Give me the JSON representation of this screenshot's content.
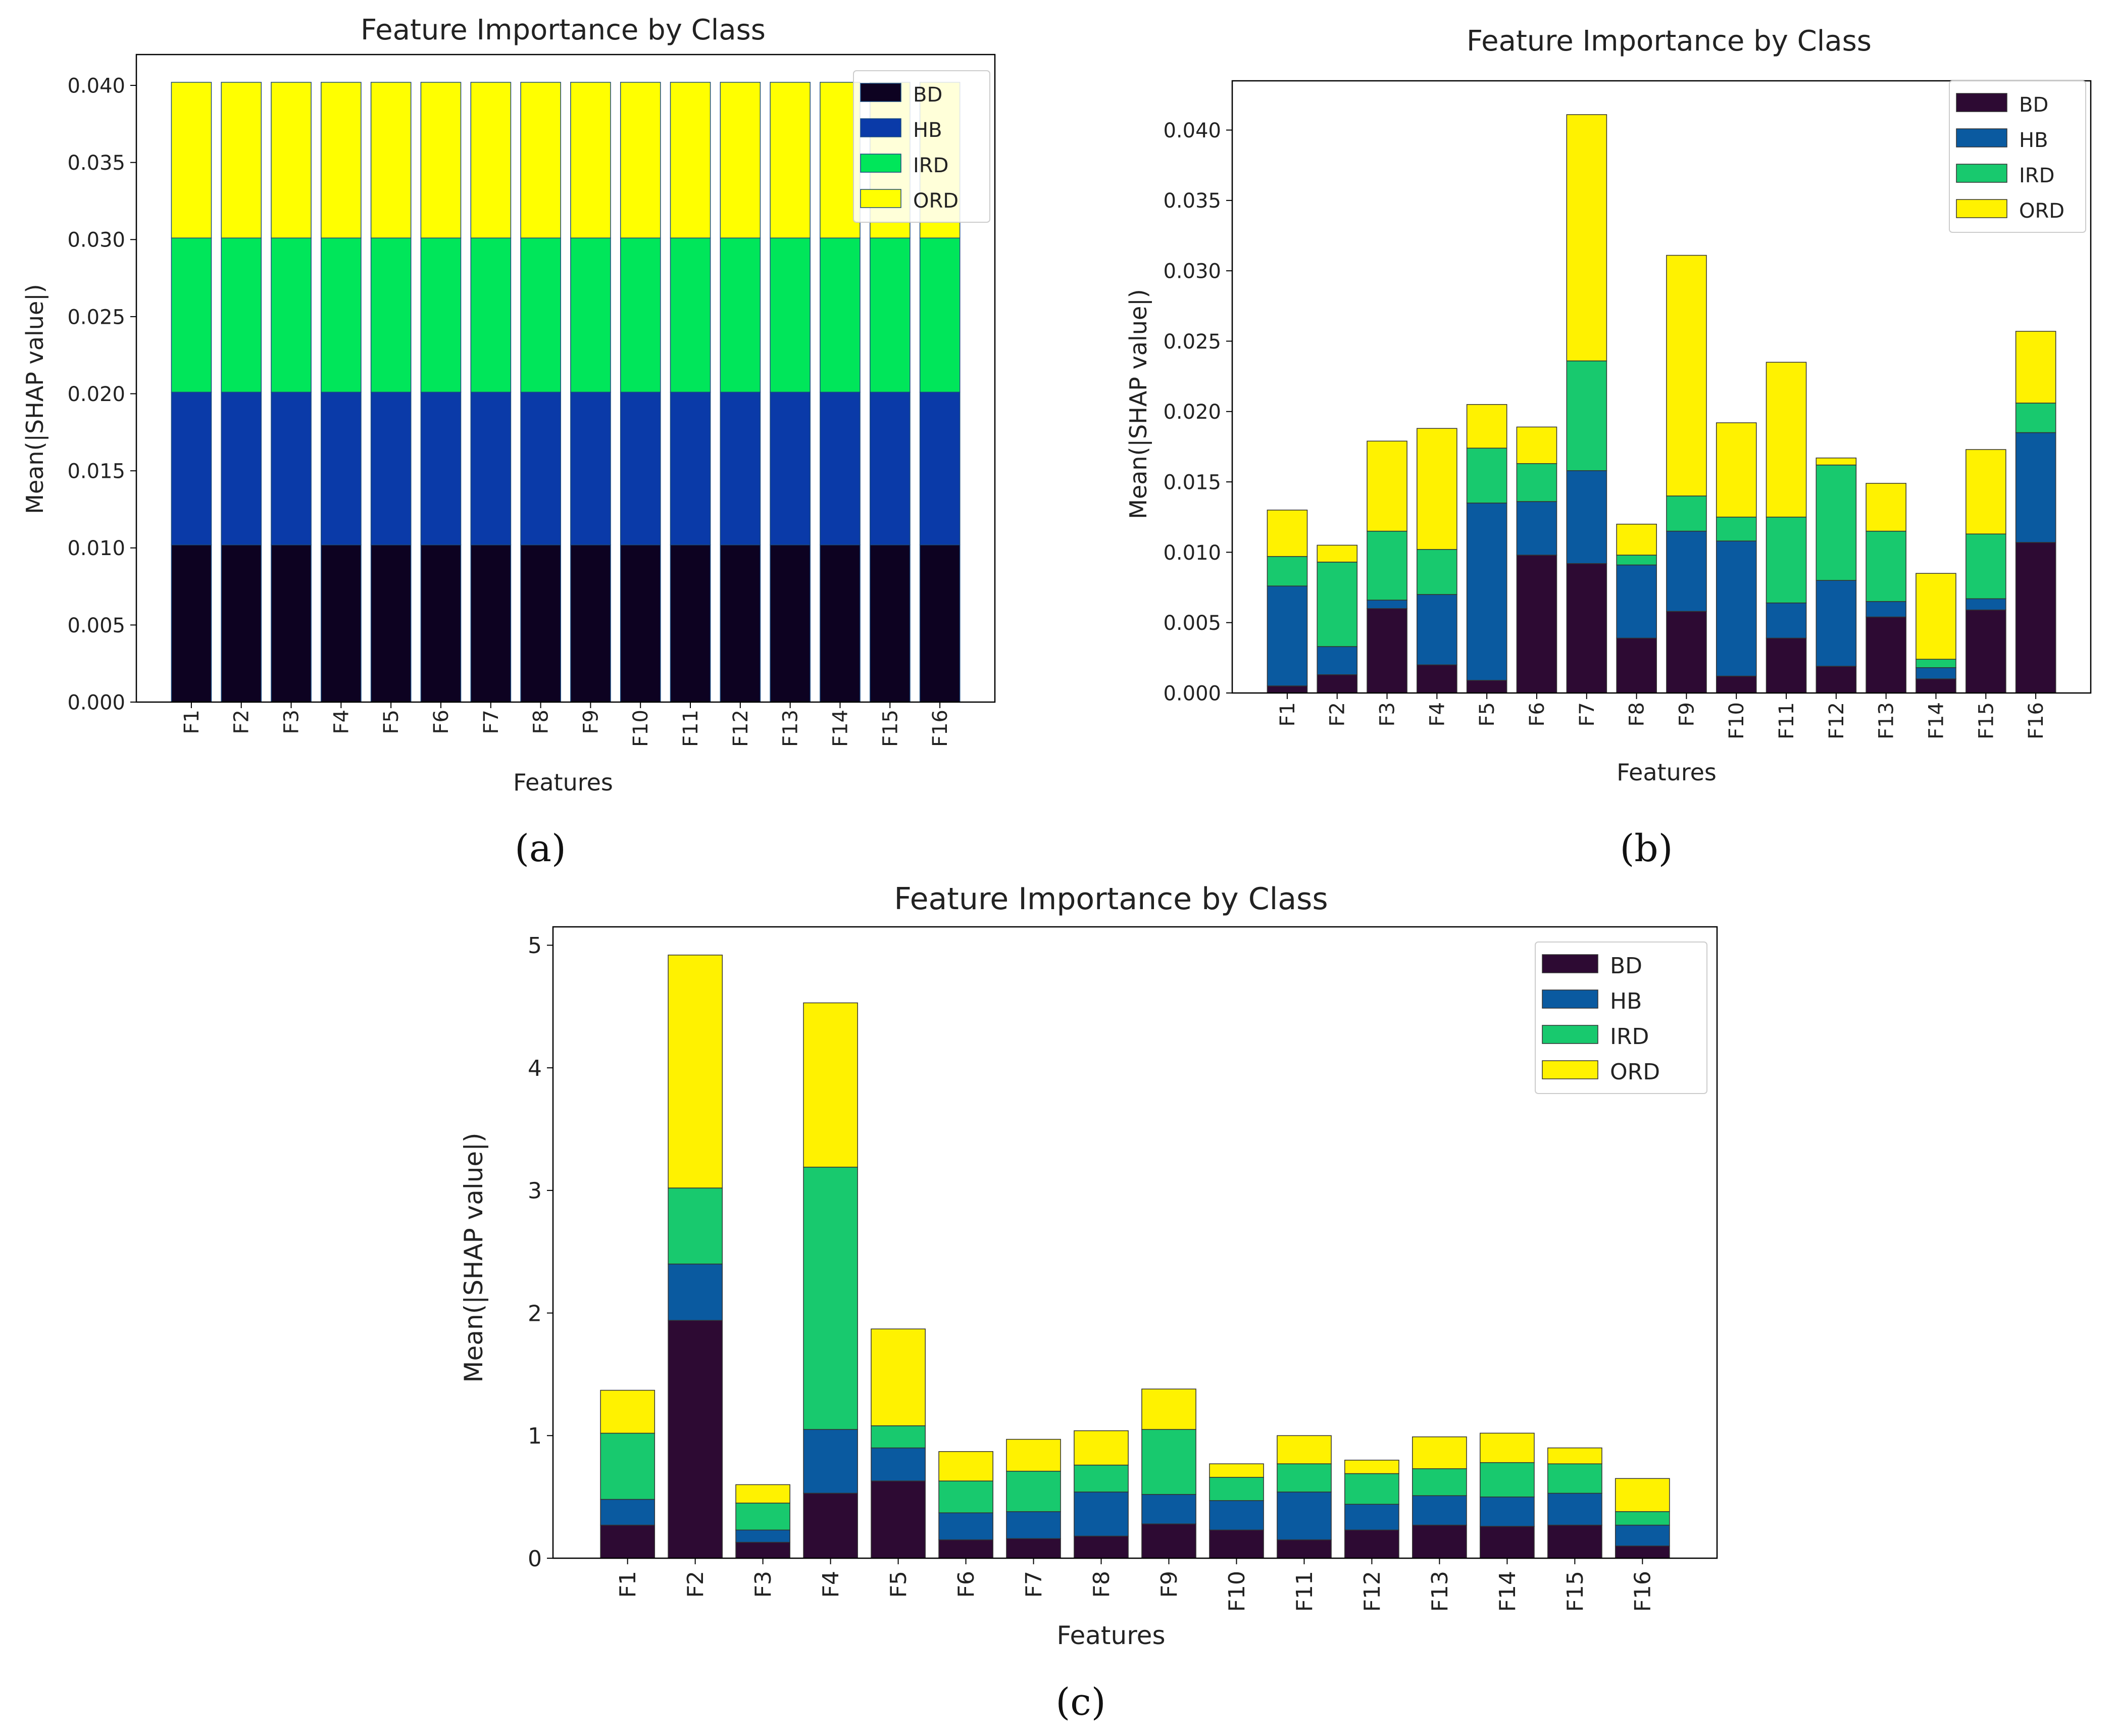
{
  "colors": {
    "BD": "#0d0221",
    "HB": "#0a3aa8",
    "IRD": "#00e65a",
    "ORD": "#ffff00"
  },
  "colors_b": {
    "BD": "#2d0a33",
    "HB": "#0a5aa0",
    "IRD": "#18c96e",
    "ORD": "#fff200"
  },
  "chart_data": [
    {
      "panel": "(a)",
      "type": "bar",
      "stacked": true,
      "title": "Feature Importance by Class",
      "xlabel": "Features",
      "ylabel": "Mean(|SHAP value|)",
      "categories": [
        "F1",
        "F2",
        "F3",
        "F4",
        "F5",
        "F6",
        "F7",
        "F8",
        "F9",
        "F10",
        "F11",
        "F12",
        "F13",
        "F14",
        "F15",
        "F16"
      ],
      "ylim": [
        0,
        0.042
      ],
      "yticks": [
        "0.000",
        "0.005",
        "0.010",
        "0.015",
        "0.020",
        "0.025",
        "0.030",
        "0.035",
        "0.040"
      ],
      "legend": "top-right",
      "series": [
        {
          "name": "BD",
          "values": [
            0.0102,
            0.0102,
            0.0102,
            0.0102,
            0.0102,
            0.0102,
            0.0102,
            0.0102,
            0.0102,
            0.0102,
            0.0102,
            0.0102,
            0.0102,
            0.0102,
            0.0102,
            0.0102
          ]
        },
        {
          "name": "HB",
          "values": [
            0.0099,
            0.0099,
            0.0099,
            0.0099,
            0.0099,
            0.0099,
            0.0099,
            0.0099,
            0.0099,
            0.0099,
            0.0099,
            0.0099,
            0.0099,
            0.0099,
            0.0099,
            0.0099
          ]
        },
        {
          "name": "IRD",
          "values": [
            0.01,
            0.01,
            0.01,
            0.01,
            0.01,
            0.01,
            0.01,
            0.01,
            0.01,
            0.01,
            0.01,
            0.01,
            0.01,
            0.01,
            0.01,
            0.01
          ]
        },
        {
          "name": "ORD",
          "values": [
            0.0101,
            0.0101,
            0.0101,
            0.0101,
            0.0101,
            0.0101,
            0.0101,
            0.0101,
            0.0101,
            0.0101,
            0.0101,
            0.0101,
            0.0101,
            0.0101,
            0.0101,
            0.0101
          ]
        }
      ]
    },
    {
      "panel": "(b)",
      "type": "bar",
      "stacked": true,
      "title": "Feature Importance by Class",
      "xlabel": "Features",
      "ylabel": "Mean(|SHAP value|)",
      "categories": [
        "F1",
        "F2",
        "F3",
        "F4",
        "F5",
        "F6",
        "F7",
        "F8",
        "F9",
        "F10",
        "F11",
        "F12",
        "F13",
        "F14",
        "F15",
        "F16"
      ],
      "ylim": [
        0,
        0.0435
      ],
      "yticks": [
        "0.000",
        "0.005",
        "0.010",
        "0.015",
        "0.020",
        "0.025",
        "0.030",
        "0.035",
        "0.040"
      ],
      "legend": "top-right",
      "series": [
        {
          "name": "BD",
          "values": [
            0.0005,
            0.0013,
            0.006,
            0.002,
            0.0009,
            0.0098,
            0.0092,
            0.0039,
            0.0058,
            0.0012,
            0.0039,
            0.0019,
            0.0054,
            0.001,
            0.0059,
            0.0107
          ]
        },
        {
          "name": "HB",
          "values": [
            0.0071,
            0.002,
            0.0006,
            0.005,
            0.0126,
            0.0038,
            0.0066,
            0.0052,
            0.0057,
            0.0096,
            0.0025,
            0.0061,
            0.0011,
            0.0008,
            0.0008,
            0.0078
          ]
        },
        {
          "name": "IRD",
          "values": [
            0.0021,
            0.006,
            0.0049,
            0.0032,
            0.0039,
            0.0027,
            0.0078,
            0.0007,
            0.0025,
            0.0017,
            0.0061,
            0.0082,
            0.005,
            0.0006,
            0.0046,
            0.0021
          ]
        },
        {
          "name": "ORD",
          "values": [
            0.0033,
            0.0012,
            0.0064,
            0.0086,
            0.0031,
            0.0026,
            0.0175,
            0.0022,
            0.0171,
            0.0067,
            0.011,
            0.0005,
            0.0034,
            0.0061,
            0.006,
            0.0051
          ]
        }
      ]
    },
    {
      "panel": "(c)",
      "type": "bar",
      "stacked": true,
      "title": "Feature Importance by Class",
      "xlabel": "Features",
      "ylabel": "Mean(|SHAP value|)",
      "categories": [
        "F1",
        "F2",
        "F3",
        "F4",
        "F5",
        "F6",
        "F7",
        "F8",
        "F9",
        "F10",
        "F11",
        "F12",
        "F13",
        "F14",
        "F15",
        "F16"
      ],
      "ylim": [
        0,
        5.15
      ],
      "yticks": [
        "0",
        "1",
        "2",
        "3",
        "4",
        "5"
      ],
      "legend": "top-right",
      "series": [
        {
          "name": "BD",
          "values": [
            0.27,
            1.94,
            0.13,
            0.53,
            0.63,
            0.15,
            0.16,
            0.18,
            0.28,
            0.23,
            0.15,
            0.23,
            0.27,
            0.26,
            0.27,
            0.1
          ]
        },
        {
          "name": "HB",
          "values": [
            0.21,
            0.46,
            0.1,
            0.52,
            0.27,
            0.22,
            0.22,
            0.36,
            0.24,
            0.24,
            0.39,
            0.21,
            0.24,
            0.24,
            0.26,
            0.17
          ]
        },
        {
          "name": "IRD",
          "values": [
            0.54,
            0.62,
            0.22,
            2.14,
            0.18,
            0.26,
            0.33,
            0.22,
            0.53,
            0.19,
            0.23,
            0.25,
            0.22,
            0.28,
            0.24,
            0.11
          ]
        },
        {
          "name": "ORD",
          "values": [
            0.35,
            1.9,
            0.15,
            1.34,
            0.79,
            0.24,
            0.26,
            0.28,
            0.33,
            0.11,
            0.23,
            0.11,
            0.26,
            0.24,
            0.13,
            0.27
          ]
        }
      ]
    }
  ]
}
